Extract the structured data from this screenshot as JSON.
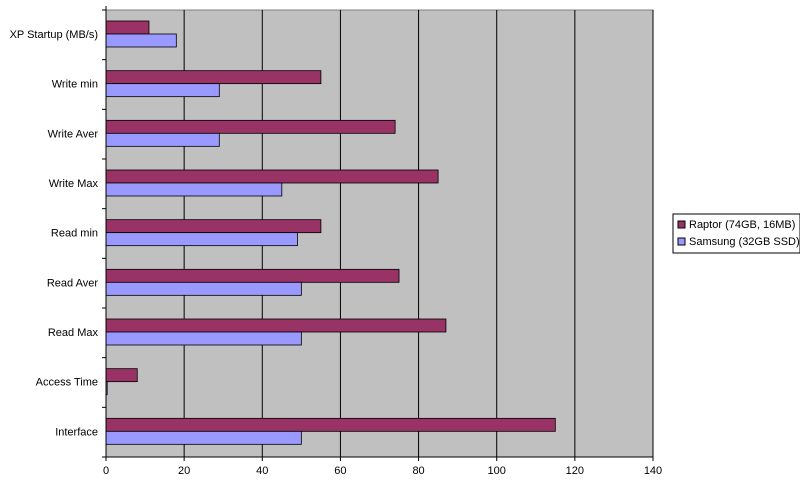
{
  "chart_data": {
    "type": "bar",
    "orientation": "horizontal",
    "categories": [
      "XP Startup (MB/s)",
      "Write min",
      "Write Aver",
      "Write Max",
      "Read min",
      "Read Aver",
      "Read Max",
      "Access Time",
      "Interface"
    ],
    "series": [
      {
        "name": "Raptor (74GB, 16MB)",
        "color": "#993366",
        "values": [
          11,
          55,
          74,
          85,
          55,
          75,
          87,
          8,
          115
        ]
      },
      {
        "name": "Samsung (32GB SSD)",
        "color": "#9999ff",
        "values": [
          18,
          29,
          29,
          45,
          49,
          50,
          50,
          0.3,
          50
        ]
      }
    ],
    "xlim": [
      0,
      140
    ],
    "xticks": [
      0,
      20,
      40,
      60,
      80,
      100,
      120,
      140
    ],
    "grid": "vertical",
    "plot_background": "#c0c0c0",
    "legend_position": "right",
    "title": "",
    "xlabel": "",
    "ylabel": ""
  }
}
